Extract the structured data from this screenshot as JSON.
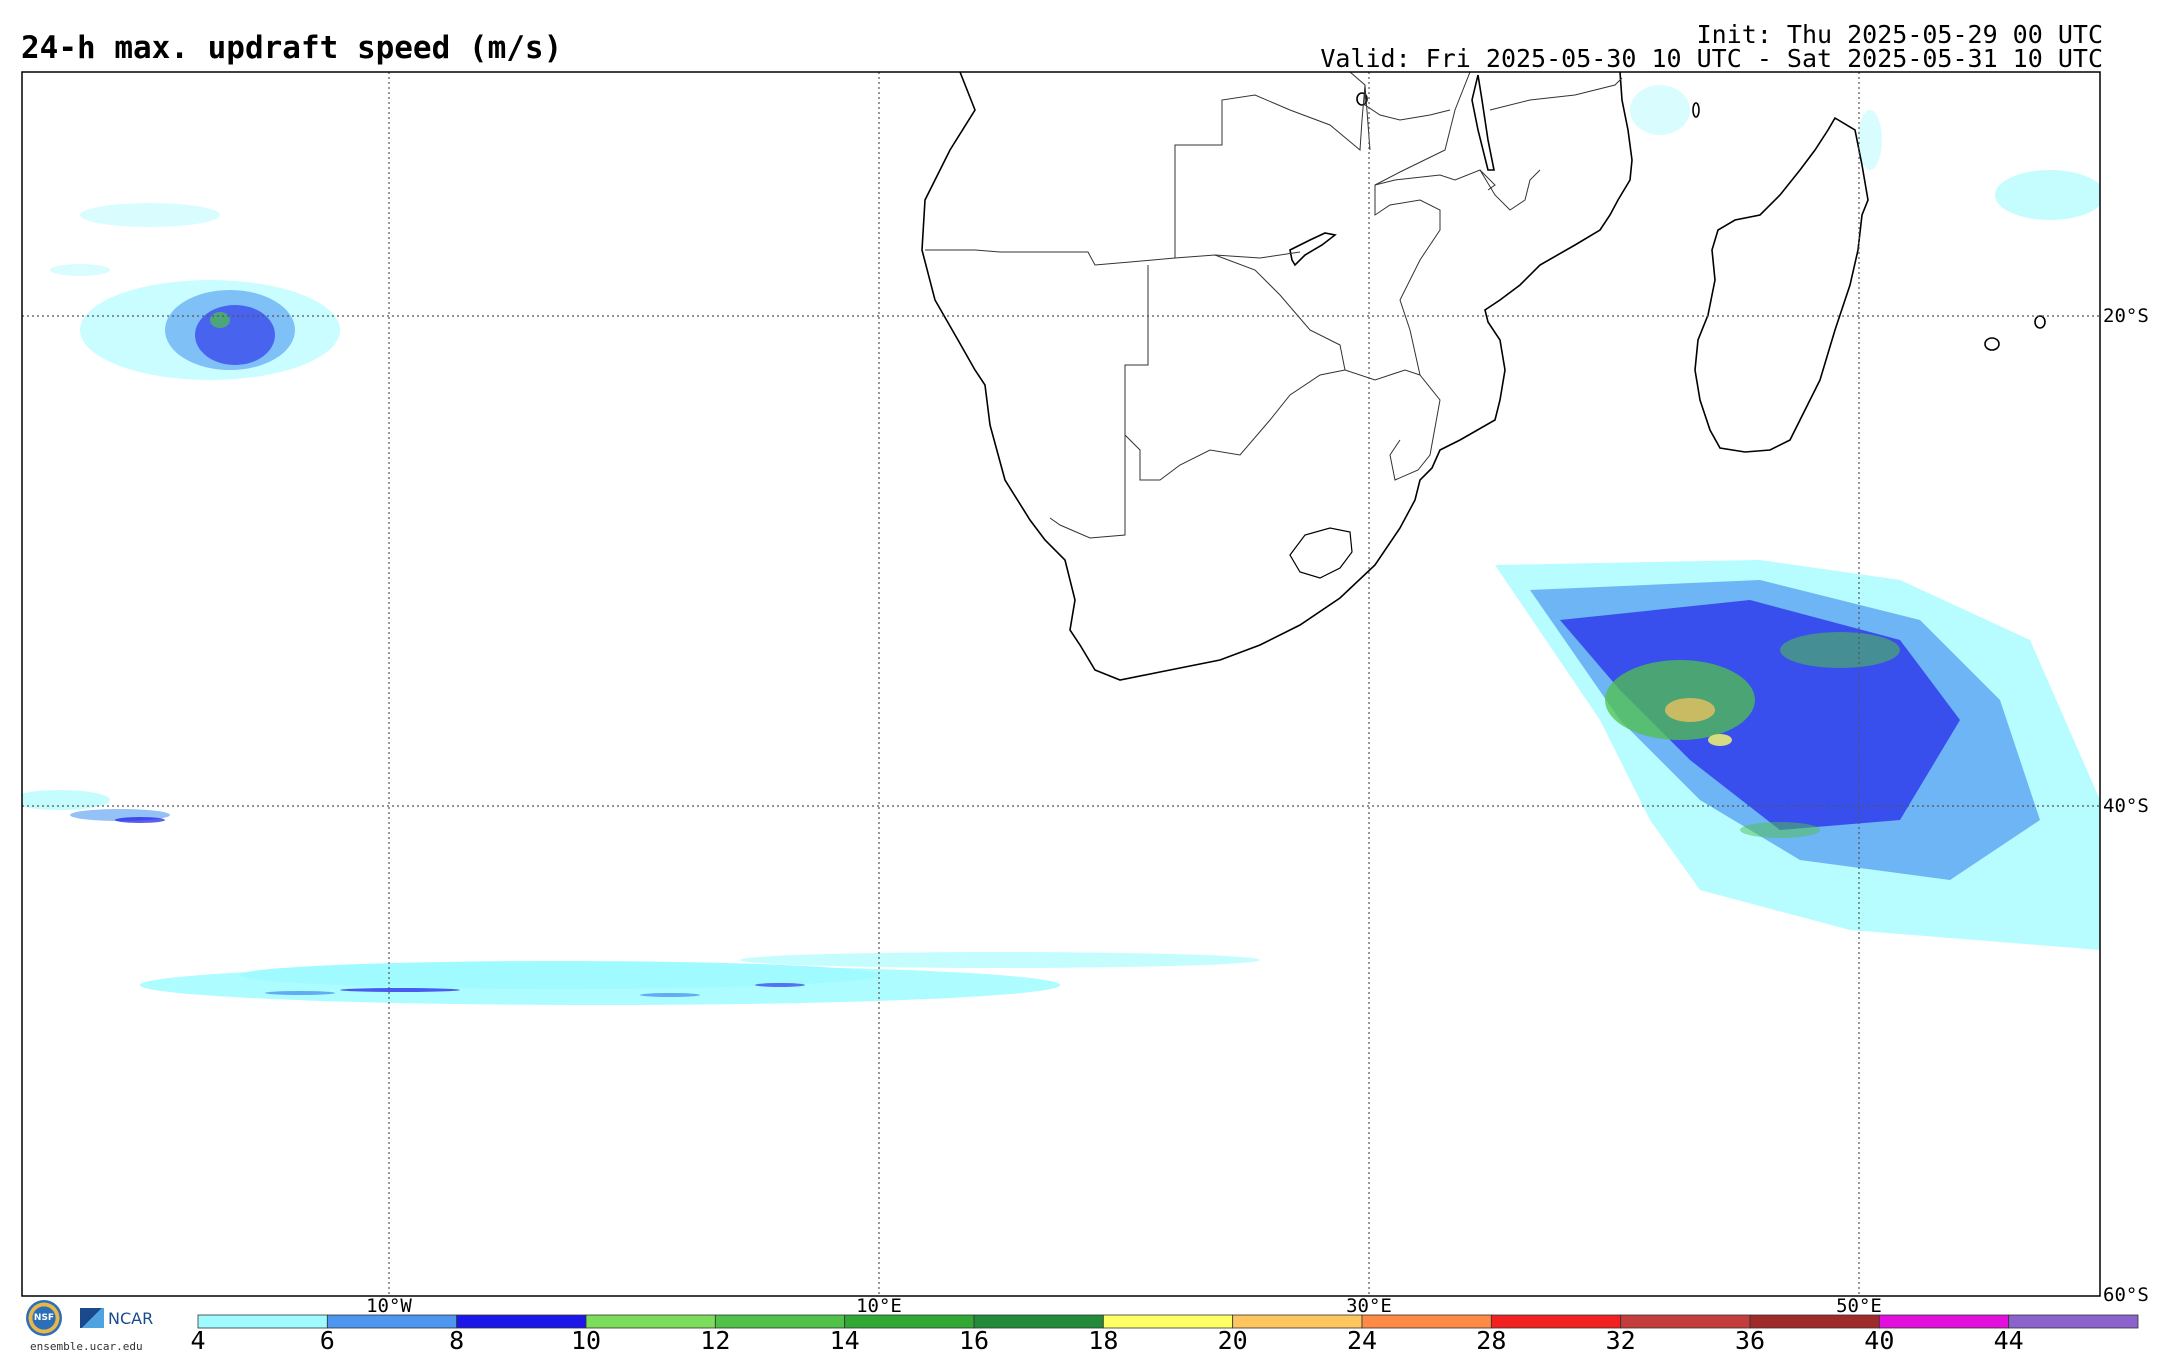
{
  "header": {
    "title": "24-h max. updraft speed (m/s)",
    "init": "Init: Thu 2025-05-29 00 UTC",
    "valid": "Valid: Fri 2025-05-30 10 UTC - Sat 2025-05-31 10 UTC"
  },
  "map": {
    "region": "Southern Africa and adjacent oceans",
    "gridlines": "dotted",
    "longitude_labels": [
      "10°W",
      "10°E",
      "30°E",
      "50°E"
    ],
    "latitude_labels": [
      "20°S",
      "40°S",
      "60°S"
    ]
  },
  "colorbar": {
    "labels": [
      "4",
      "6",
      "8",
      "10",
      "12",
      "14",
      "16",
      "18",
      "20",
      "24",
      "28",
      "32",
      "36",
      "40",
      "44"
    ],
    "colors": [
      "#9ffbff",
      "#4d97f0",
      "#1b17ea",
      "#7cdd5c",
      "#50c24a",
      "#31a834",
      "#228b3a",
      "#ffff66",
      "#ffc55e",
      "#ff8a45",
      "#f32020",
      "#c43c3c",
      "#a02a2a",
      "#e30fdc",
      "#8a63cc"
    ]
  },
  "logo": {
    "nsf": "NSF",
    "ncar": "NCAR",
    "url": "ensemble.ucar.edu"
  }
}
